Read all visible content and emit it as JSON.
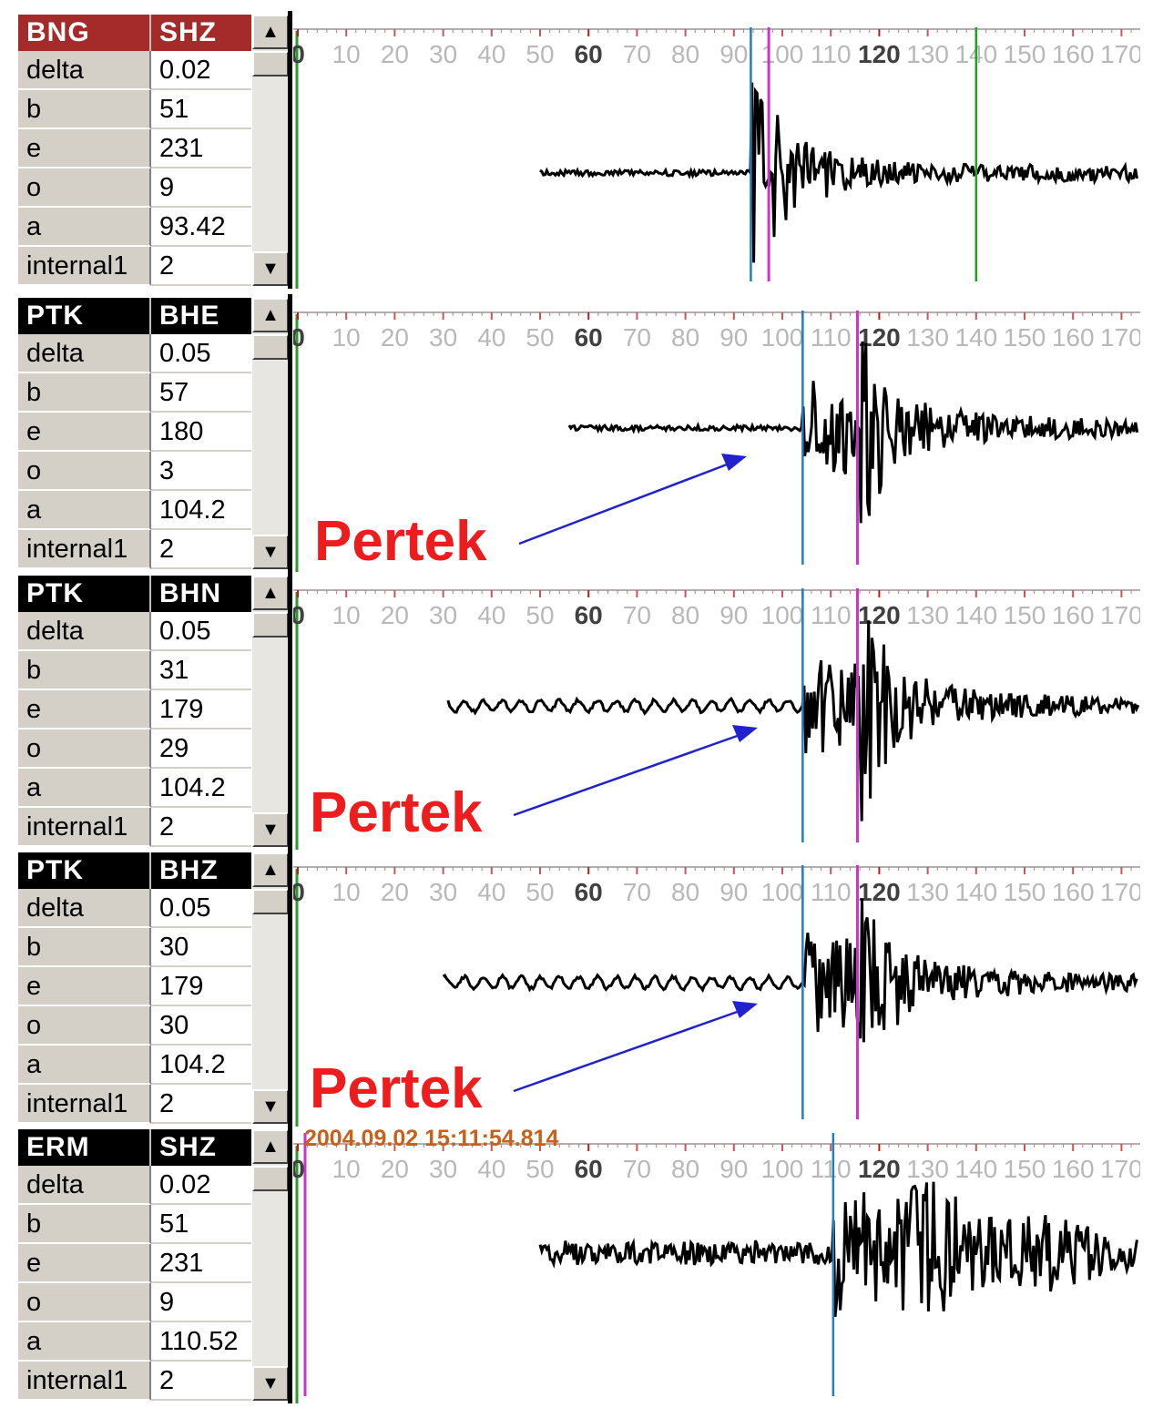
{
  "panels": [
    {
      "station": "BNG",
      "channel": "SHZ",
      "header_color": "#a52a2a",
      "fields": [
        {
          "key": "delta",
          "value": "0.02"
        },
        {
          "key": "b",
          "value": "51"
        },
        {
          "key": "e",
          "value": "231"
        },
        {
          "key": "o",
          "value": "9"
        },
        {
          "key": "a",
          "value": "93.42"
        },
        {
          "key": "internal1",
          "value": "2"
        }
      ],
      "axis_ticks": [
        "0",
        "10",
        "20",
        "30",
        "40",
        "50",
        "60",
        "70",
        "80",
        "90",
        "100",
        "110",
        "120",
        "130",
        "140",
        "150",
        "160",
        "170"
      ],
      "trace_start": 50,
      "trace_end": 174,
      "p_pick": 93.5,
      "s_pick": 97.2,
      "extra_pick": 140,
      "extra_pick_color": "#22a222",
      "onset": 93.4,
      "amplitude": 1.0
    },
    {
      "station": "PTK",
      "channel": "BHE",
      "header_color": "#000000",
      "fields": [
        {
          "key": "delta",
          "value": "0.05"
        },
        {
          "key": "b",
          "value": "57"
        },
        {
          "key": "e",
          "value": "180"
        },
        {
          "key": "o",
          "value": "3"
        },
        {
          "key": "a",
          "value": "104.2"
        },
        {
          "key": "internal1",
          "value": "2"
        }
      ],
      "axis_ticks": [
        "0",
        "10",
        "20",
        "30",
        "40",
        "50",
        "60",
        "70",
        "80",
        "90",
        "100",
        "110",
        "120",
        "130",
        "140",
        "150",
        "160",
        "170"
      ],
      "trace_start": 56,
      "trace_end": 174,
      "p_pick": 104.2,
      "s_pick": 115.5,
      "annotation": "Pertek",
      "onset": 104.2,
      "amplitude": 1.0
    },
    {
      "station": "PTK",
      "channel": "BHN",
      "header_color": "#000000",
      "fields": [
        {
          "key": "delta",
          "value": "0.05"
        },
        {
          "key": "b",
          "value": "31"
        },
        {
          "key": "e",
          "value": "179"
        },
        {
          "key": "o",
          "value": "29"
        },
        {
          "key": "a",
          "value": "104.2"
        },
        {
          "key": "internal1",
          "value": "2"
        }
      ],
      "axis_ticks": [
        "0",
        "10",
        "20",
        "30",
        "40",
        "50",
        "60",
        "70",
        "80",
        "90",
        "100",
        "110",
        "120",
        "130",
        "140",
        "150",
        "160",
        "170"
      ],
      "trace_start": 31,
      "trace_end": 174,
      "p_pick": 104.2,
      "s_pick": 115.5,
      "annotation": "Pertek",
      "onset": 104.2,
      "amplitude": 1.0
    },
    {
      "station": "PTK",
      "channel": "BHZ",
      "header_color": "#000000",
      "fields": [
        {
          "key": "delta",
          "value": "0.05"
        },
        {
          "key": "b",
          "value": "30"
        },
        {
          "key": "e",
          "value": "179"
        },
        {
          "key": "o",
          "value": "30"
        },
        {
          "key": "a",
          "value": "104.2"
        },
        {
          "key": "internal1",
          "value": "2"
        }
      ],
      "axis_ticks": [
        "0",
        "10",
        "20",
        "30",
        "40",
        "50",
        "60",
        "70",
        "80",
        "90",
        "100",
        "110",
        "120",
        "130",
        "140",
        "150",
        "160",
        "170"
      ],
      "trace_start": 30,
      "trace_end": 174,
      "p_pick": 104.2,
      "s_pick": 115.5,
      "annotation": "Pertek",
      "onset": 104.2,
      "amplitude": 1.0
    },
    {
      "station": "ERM",
      "channel": "SHZ",
      "header_color": "#000000",
      "fields": [
        {
          "key": "delta",
          "value": "0.02"
        },
        {
          "key": "b",
          "value": "51"
        },
        {
          "key": "e",
          "value": "231"
        },
        {
          "key": "o",
          "value": "9"
        },
        {
          "key": "a",
          "value": "110.52"
        },
        {
          "key": "internal1",
          "value": "2"
        }
      ],
      "axis_ticks": [
        "0",
        "10",
        "20",
        "30",
        "40",
        "50",
        "60",
        "70",
        "80",
        "90",
        "100",
        "110",
        "120",
        "130",
        "140",
        "150",
        "160",
        "170"
      ],
      "trace_start": 50,
      "trace_end": 174,
      "p_pick": 110.5,
      "s_pick": 1.5,
      "datestamp": "2004.09.02 15:11:54.814",
      "onset": 110.5,
      "amplitude": 1.0
    }
  ],
  "colors": {
    "p_pick": "#1f7fbf",
    "s_pick": "#cc33cc",
    "annotation": "#ee1c1c",
    "arrow": "#2222cc",
    "axis_tick_major": "#c21919",
    "axis_label": "#b8b8b8"
  },
  "icons": {
    "scroll_up": "up-arrow-icon",
    "scroll_down": "down-arrow-icon"
  }
}
